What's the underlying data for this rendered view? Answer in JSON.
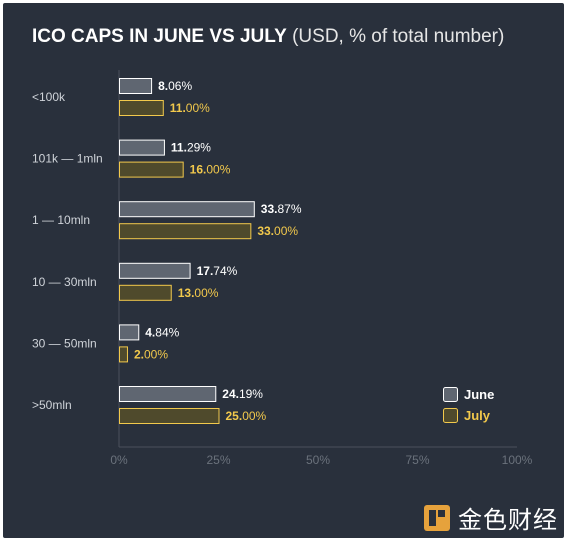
{
  "title": {
    "main": "ICO CAPS IN JUNE VS JULY",
    "sub": "(USD, % of total number)"
  },
  "chart_data": {
    "type": "bar",
    "orientation": "horizontal",
    "title": "ICO CAPS IN JUNE VS JULY (USD, % of total number)",
    "categories": [
      "<100k",
      "101k — 1mln",
      "1 — 10mln",
      "10 — 30mln",
      "30 — 50mln",
      ">50mln"
    ],
    "series": [
      {
        "name": "June",
        "values": [
          8.06,
          11.29,
          33.87,
          17.74,
          4.84,
          24.19
        ],
        "labels": [
          [
            "8.",
            "06%"
          ],
          [
            "11.",
            "29%"
          ],
          [
            "33.",
            "87%"
          ],
          [
            "17.",
            "74%"
          ],
          [
            "4.",
            "84%"
          ],
          [
            "24.",
            "19%"
          ]
        ],
        "color": "#5f6671",
        "stroke": "#ffffff",
        "label_color": "#ffffff"
      },
      {
        "name": "July",
        "values": [
          11.0,
          16.0,
          33.0,
          13.0,
          2.0,
          25.0
        ],
        "labels": [
          [
            "11.",
            "00%"
          ],
          [
            "16.",
            "00%"
          ],
          [
            "33.",
            "00%"
          ],
          [
            "13.",
            "00%"
          ],
          [
            "2.",
            "00%"
          ],
          [
            "25.",
            "00%"
          ]
        ],
        "color": "#4f4a2c",
        "stroke": "#f2c94c",
        "label_color": "#f2c94c"
      }
    ],
    "xlim": [
      0,
      100
    ],
    "x_ticks": [
      "0%",
      "25%",
      "50%",
      "75%",
      "100%"
    ],
    "legend": "bottom-right"
  },
  "watermark": {
    "text": "金色财经"
  },
  "colors": {
    "background": "#29303c",
    "axis": "#4a515c",
    "tick_text": "#6b727c",
    "category_text": "#cfd3d9"
  }
}
